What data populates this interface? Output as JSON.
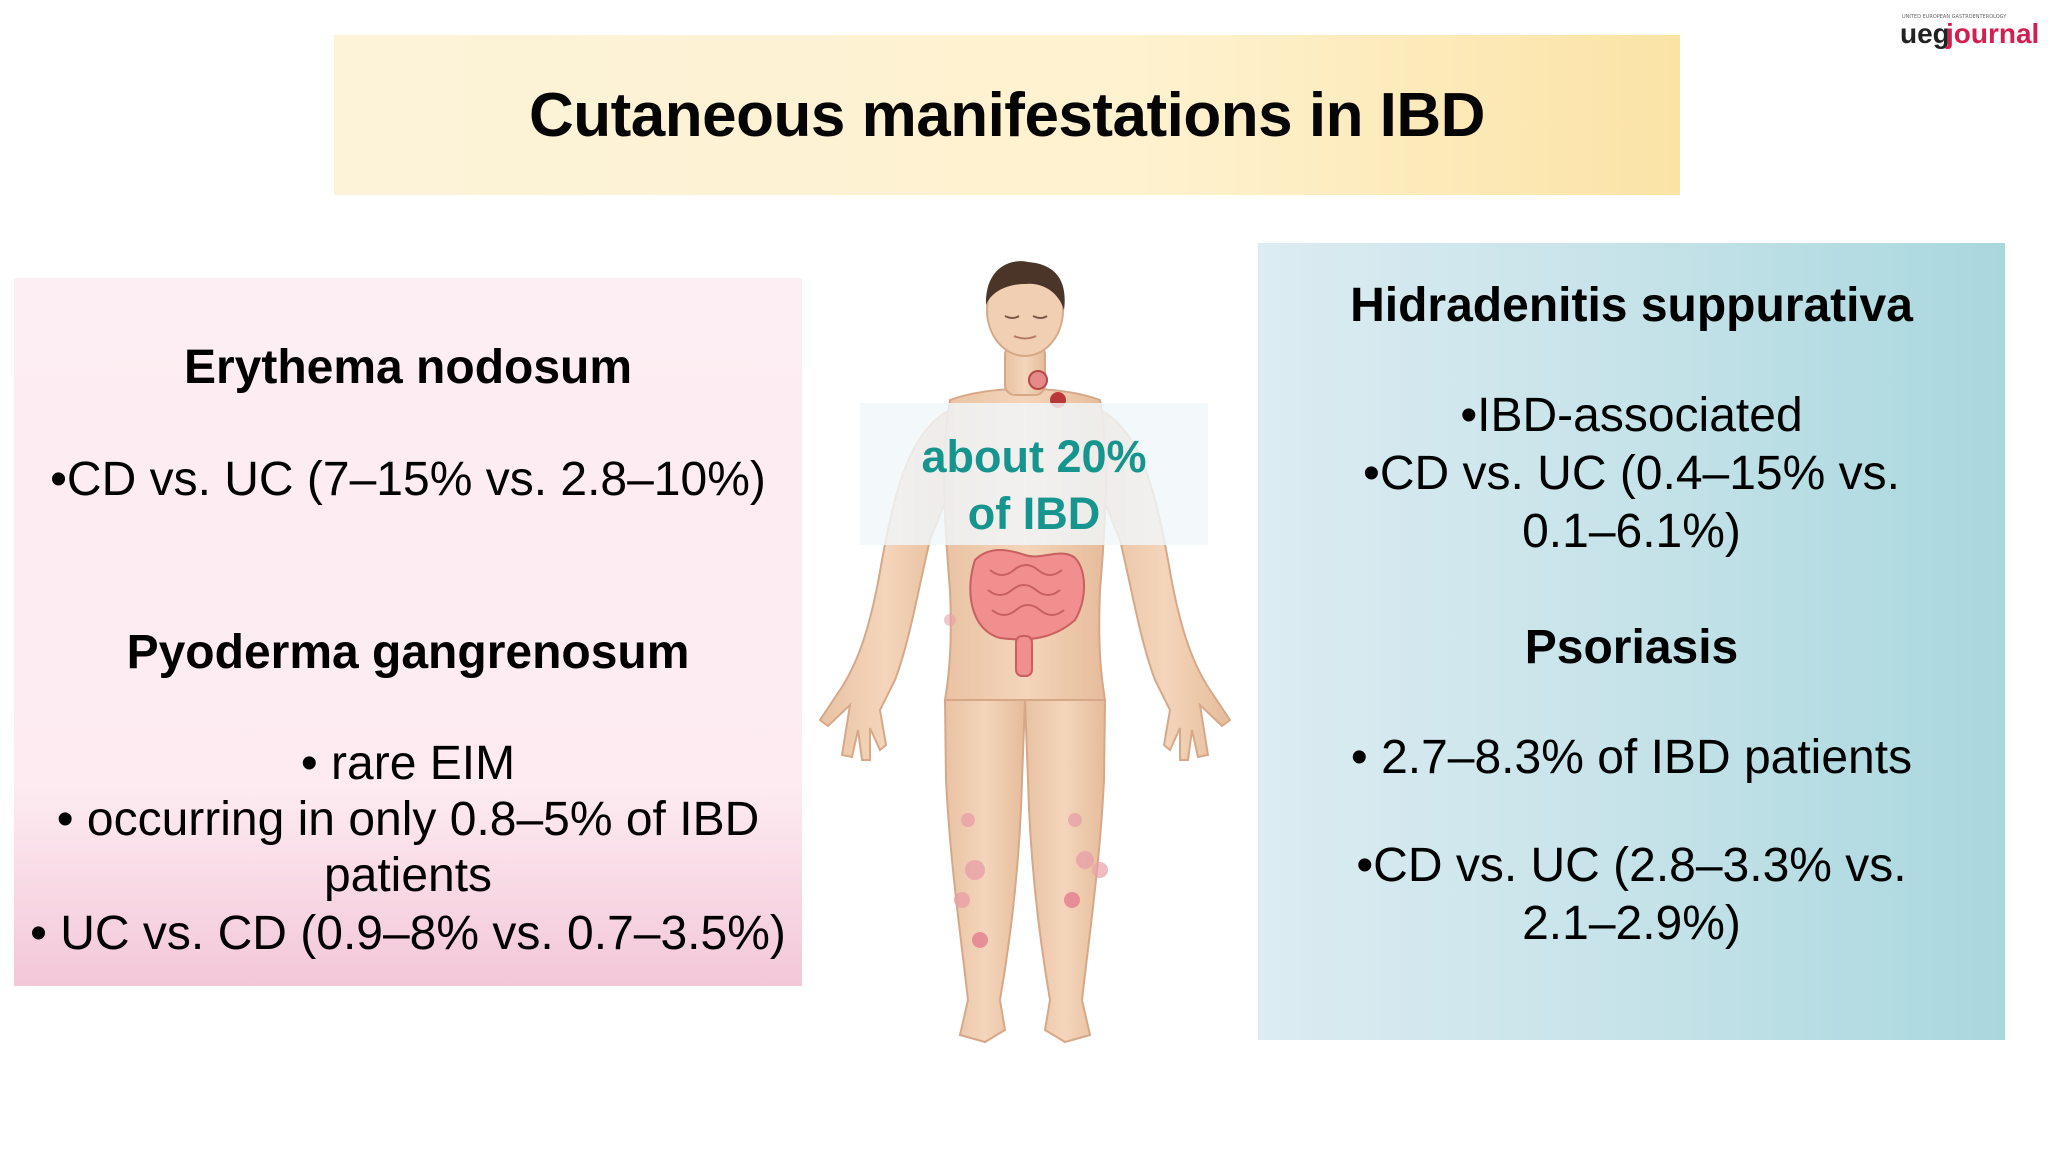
{
  "title": "Cutaneous manifestations in IBD",
  "logo": {
    "ueg": "ueg",
    "journal": "journal",
    "tiny_text": "UNITED EUROPEAN GASTROENTEROLOGY"
  },
  "left": {
    "erythema": {
      "heading": "Erythema nodosum",
      "lines": [
        "•CD vs. UC (7–15% vs.  2.8–10%)"
      ]
    },
    "pyoderma": {
      "heading": "Pyoderma gangrenosum",
      "lines": [
        "• rare EIM",
        "• occurring in only 0.8–5% of IBD",
        "patients",
        "• UC vs. CD (0.9–8% vs. 0.7–3.5%)"
      ]
    }
  },
  "center": {
    "callout_line1": "about  20%",
    "callout_line2": "of IBD",
    "figure_icon": "human-body-illustration"
  },
  "right": {
    "hidradenitis": {
      "heading": "Hidradenitis suppurativa",
      "lines": [
        "•IBD-associated",
        "•CD vs. UC (0.4–15% vs.",
        "0.1–6.1%)"
      ]
    },
    "psoriasis": {
      "heading": "Psoriasis",
      "lines": [
        "• 2.7–8.3% of IBD patients",
        "•CD vs. UC (2.8–3.3% vs.",
        "2.1–2.9%)"
      ]
    }
  },
  "colors": {
    "callout_text": "#16958e",
    "logo_accent": "#d31f4f",
    "left_box": "#fdeef3",
    "right_box": "#c3e2e8",
    "title_banner": "#fef2cf"
  }
}
